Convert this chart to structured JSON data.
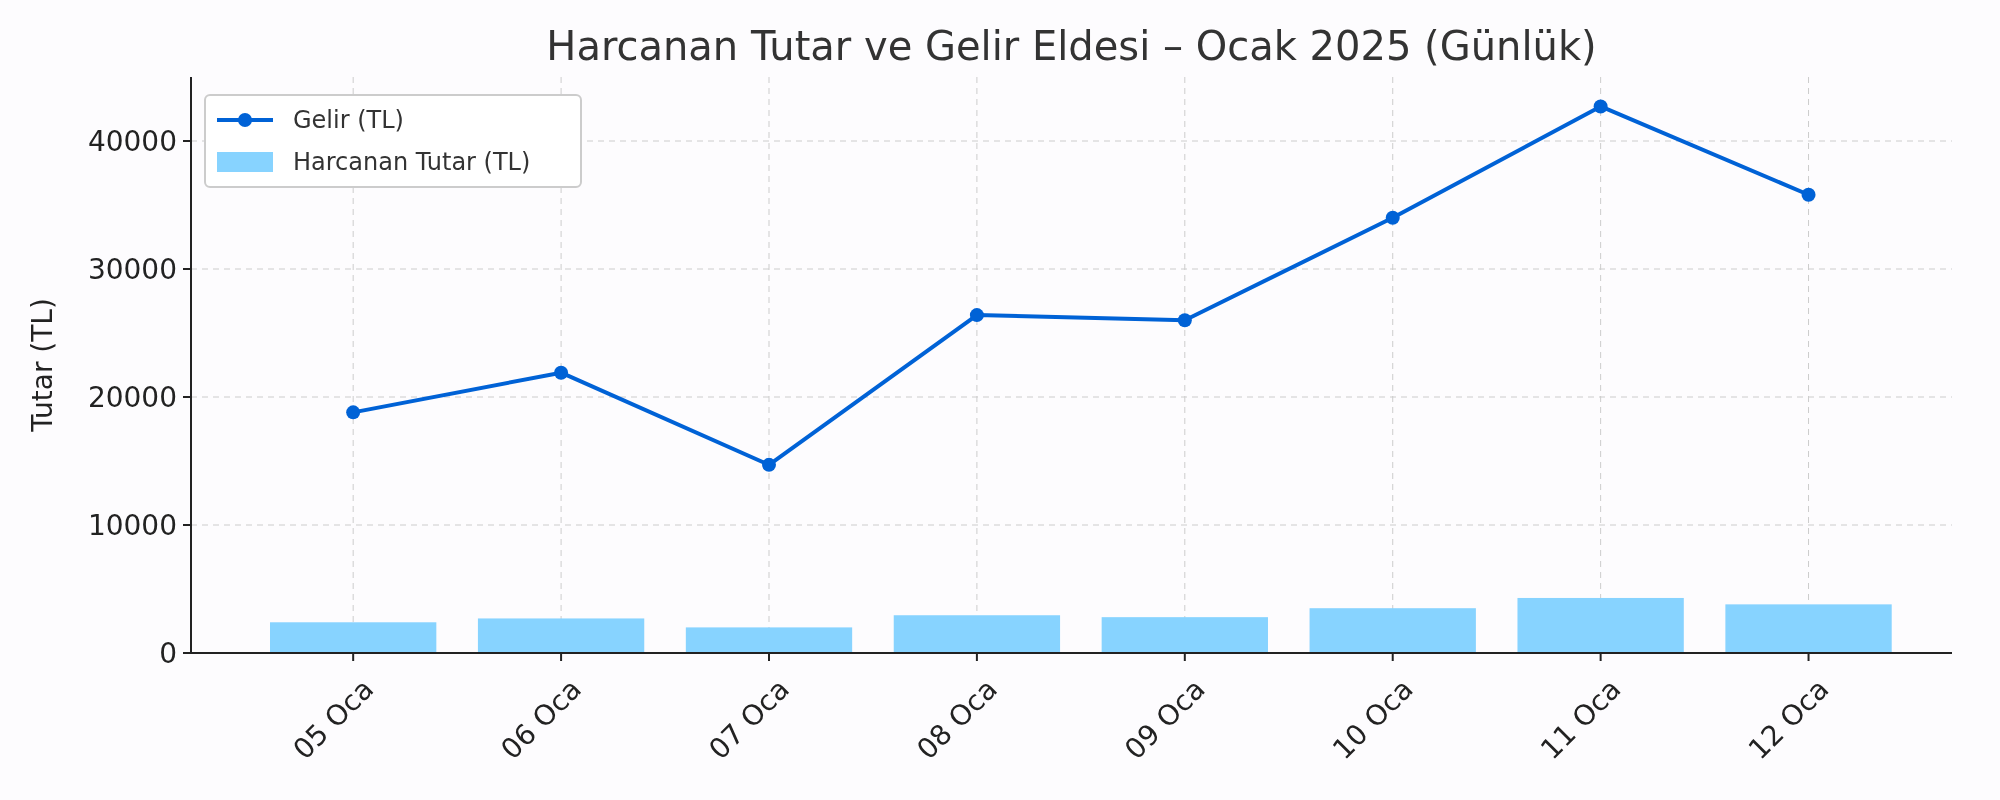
{
  "chart_data": {
    "type": "bar",
    "title": "Harcanan Tutar ve Gelir Eldesi – Ocak 2025 (Günlük)",
    "ylabel": "Tutar (TL)",
    "categories": [
      "05 Oca",
      "06 Oca",
      "07 Oca",
      "08 Oca",
      "09 Oca",
      "10 Oca",
      "11 Oca",
      "12 Oca"
    ],
    "series": [
      {
        "name": "Gelir (TL)",
        "type": "line",
        "color": "#0062d6",
        "marker": "circle",
        "line_style": "solid",
        "values": [
          18800,
          21900,
          14700,
          26400,
          26000,
          34000,
          42700,
          35800
        ]
      },
      {
        "name": "Harcanan Tutar (TL)",
        "color": "#87d3ff",
        "values": [
          2400,
          2700,
          2000,
          2950,
          2800,
          3500,
          4300,
          3800
        ]
      }
    ],
    "ylim": [
      0,
      45000
    ],
    "yticks": [
      0,
      10000,
      20000,
      30000,
      40000
    ],
    "grid": true,
    "legend": "top left"
  }
}
